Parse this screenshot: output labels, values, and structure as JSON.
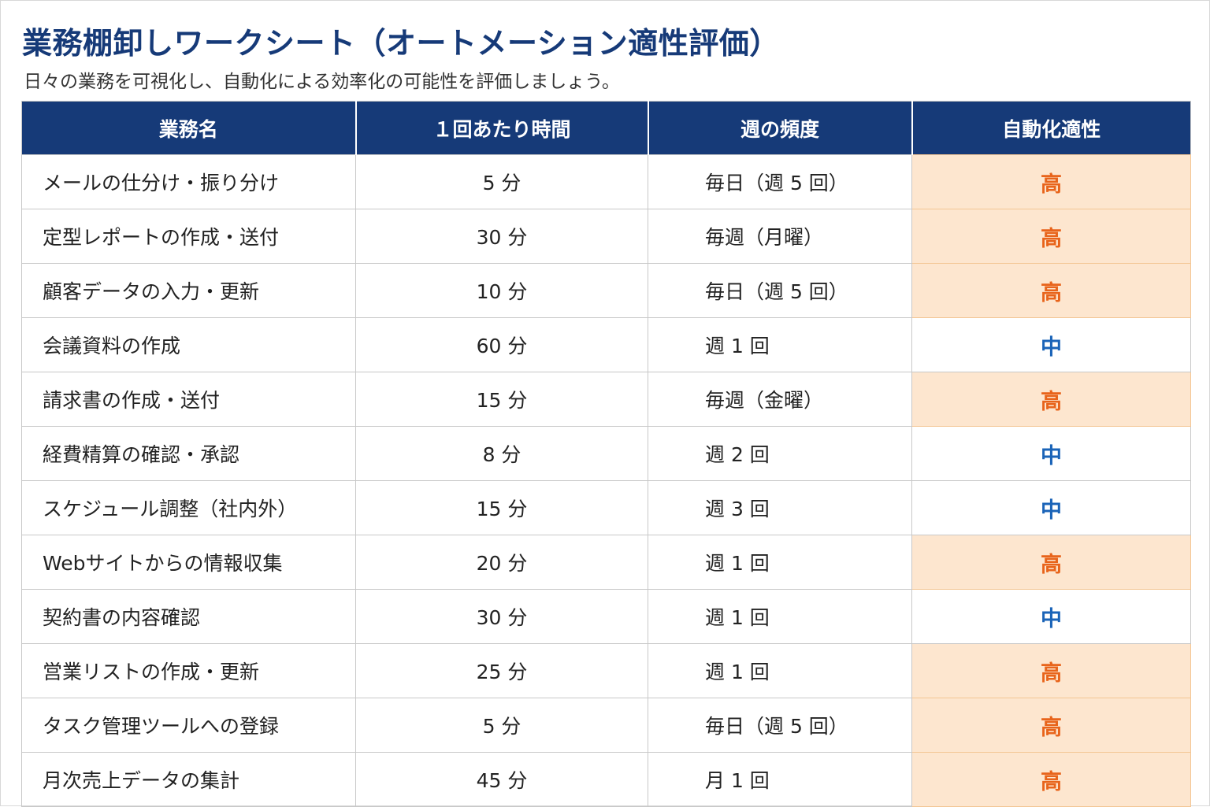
{
  "title": "業務棚卸しワークシート（オートメーション適性評価）",
  "subtitle": "日々の業務を可視化し、自動化による効率化の可能性を評価しましょう。",
  "colors": {
    "title": "#163a78",
    "header_bg": "#163a78",
    "high_bg": "#fde6cf",
    "high_text": "#e8641b",
    "mid_text": "#1b64b8"
  },
  "table": {
    "headers": [
      "業務名",
      "１回あたり時間",
      "週の頻度",
      "自動化適性"
    ],
    "rows": [
      {
        "task": "メールの仕分け・振り分け",
        "time": "5 分",
        "frequency": "毎日（週 5 回）",
        "suitability": "高",
        "level": "high"
      },
      {
        "task": "定型レポートの作成・送付",
        "time": "30 分",
        "frequency": "毎週（月曜）",
        "suitability": "高",
        "level": "high"
      },
      {
        "task": "顧客データの入力・更新",
        "time": "10 分",
        "frequency": "毎日（週 5 回）",
        "suitability": "高",
        "level": "high"
      },
      {
        "task": "会議資料の作成",
        "time": "60 分",
        "frequency": "週 1 回",
        "suitability": "中",
        "level": "mid"
      },
      {
        "task": "請求書の作成・送付",
        "time": "15 分",
        "frequency": "毎週（金曜）",
        "suitability": "高",
        "level": "high"
      },
      {
        "task": "経費精算の確認・承認",
        "time": "8 分",
        "frequency": "週 2 回",
        "suitability": "中",
        "level": "mid"
      },
      {
        "task": "スケジュール調整（社内外）",
        "time": "15 分",
        "frequency": "週 3 回",
        "suitability": "中",
        "level": "mid"
      },
      {
        "task": "Webサイトからの情報収集",
        "time": "20 分",
        "frequency": "週 1 回",
        "suitability": "高",
        "level": "high"
      },
      {
        "task": "契約書の内容確認",
        "time": "30 分",
        "frequency": "週 1 回",
        "suitability": "中",
        "level": "mid"
      },
      {
        "task": "営業リストの作成・更新",
        "time": "25 分",
        "frequency": "週 1 回",
        "suitability": "高",
        "level": "high"
      },
      {
        "task": "タスク管理ツールへの登録",
        "time": "5 分",
        "frequency": "毎日（週 5 回）",
        "suitability": "高",
        "level": "high"
      },
      {
        "task": "月次売上データの集計",
        "time": "45 分",
        "frequency": "月 1 回",
        "suitability": "高",
        "level": "high"
      }
    ]
  }
}
